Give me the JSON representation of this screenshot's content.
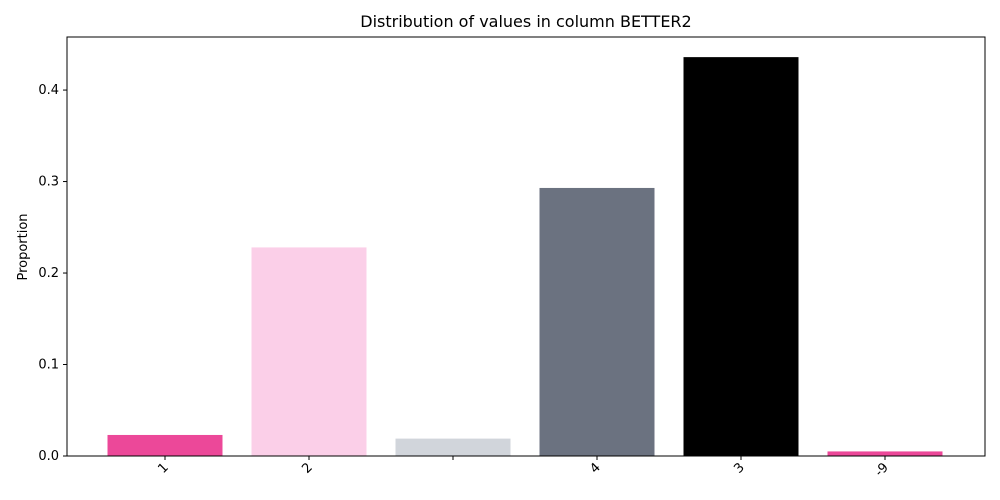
{
  "chart_data": {
    "type": "bar",
    "title": "Distribution of values in column BETTER2",
    "xlabel": "",
    "ylabel": "Proportion",
    "categories": [
      "1",
      "2",
      "",
      "4",
      "3",
      "-9"
    ],
    "values": [
      0.023,
      0.228,
      0.019,
      0.293,
      0.436,
      0.005
    ],
    "colors": [
      "#ec4899",
      "#fbcfe8",
      "#d1d5db",
      "#6b7280",
      "#000000",
      "#ec4899"
    ],
    "ylim": [
      0,
      0.458
    ],
    "yticks": [
      0.0,
      0.1,
      0.2,
      0.3,
      0.4
    ],
    "ytick_labels": [
      "0.0",
      "0.1",
      "0.2",
      "0.3",
      "0.4"
    ],
    "grid": false,
    "legend": "none"
  }
}
